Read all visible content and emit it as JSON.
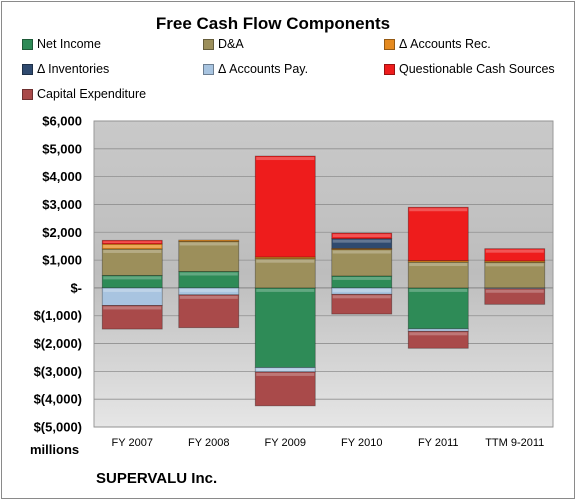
{
  "chart_data": {
    "type": "bar",
    "stacked": true,
    "title": "Free Cash Flow Components",
    "ylabel": "millions",
    "xlabel": "",
    "ylim": [
      -5000,
      6000
    ],
    "yticks": [
      6000,
      5000,
      4000,
      3000,
      2000,
      1000,
      0,
      -1000,
      -2000,
      -3000,
      -4000,
      -5000
    ],
    "ytick_labels": [
      "$6,000",
      "$5,000",
      "$4,000",
      "$3,000",
      "$2,000",
      "$1,000",
      "$-",
      "$(1,000)",
      "$(2,000)",
      "$(3,000)",
      "$(4,000)",
      "$(5,000)"
    ],
    "categories": [
      "FY 2007",
      "FY 2008",
      "FY 2009",
      "FY 2010",
      "FY 2011",
      "TTM 9-2011"
    ],
    "grid": true,
    "legend_placement": "top",
    "series": [
      {
        "name": "Net Income",
        "color": "#2e8b57",
        "values": [
          450,
          590,
          -2860,
          430,
          -1470,
          0
        ]
      },
      {
        "name": "D&A",
        "color": "#9c8f5b",
        "values": [
          950,
          1080,
          1050,
          950,
          930,
          920
        ]
      },
      {
        "name": "Δ Accounts Rec.",
        "color": "#e58a1f",
        "values": [
          180,
          50,
          60,
          40,
          50,
          50
        ]
      },
      {
        "name": "Δ Inventories",
        "color": "#2f4a6f",
        "values": [
          0,
          0,
          0,
          350,
          0,
          0
        ]
      },
      {
        "name": "Δ Accounts Pay.",
        "color": "#a8c4e0",
        "values": [
          -630,
          -250,
          -160,
          -230,
          -90,
          -30
        ]
      },
      {
        "name": "Questionable Cash Sources",
        "color": "#ee1c1c",
        "values": [
          130,
          0,
          3630,
          200,
          1920,
          440
        ]
      },
      {
        "name": "Capital Expenditure",
        "color": "#a94a4a",
        "values": [
          -850,
          -1180,
          -1220,
          -710,
          -610,
          -560
        ]
      }
    ]
  },
  "footer": {
    "unit_label": "millions",
    "company": "SUPERVALU Inc."
  }
}
